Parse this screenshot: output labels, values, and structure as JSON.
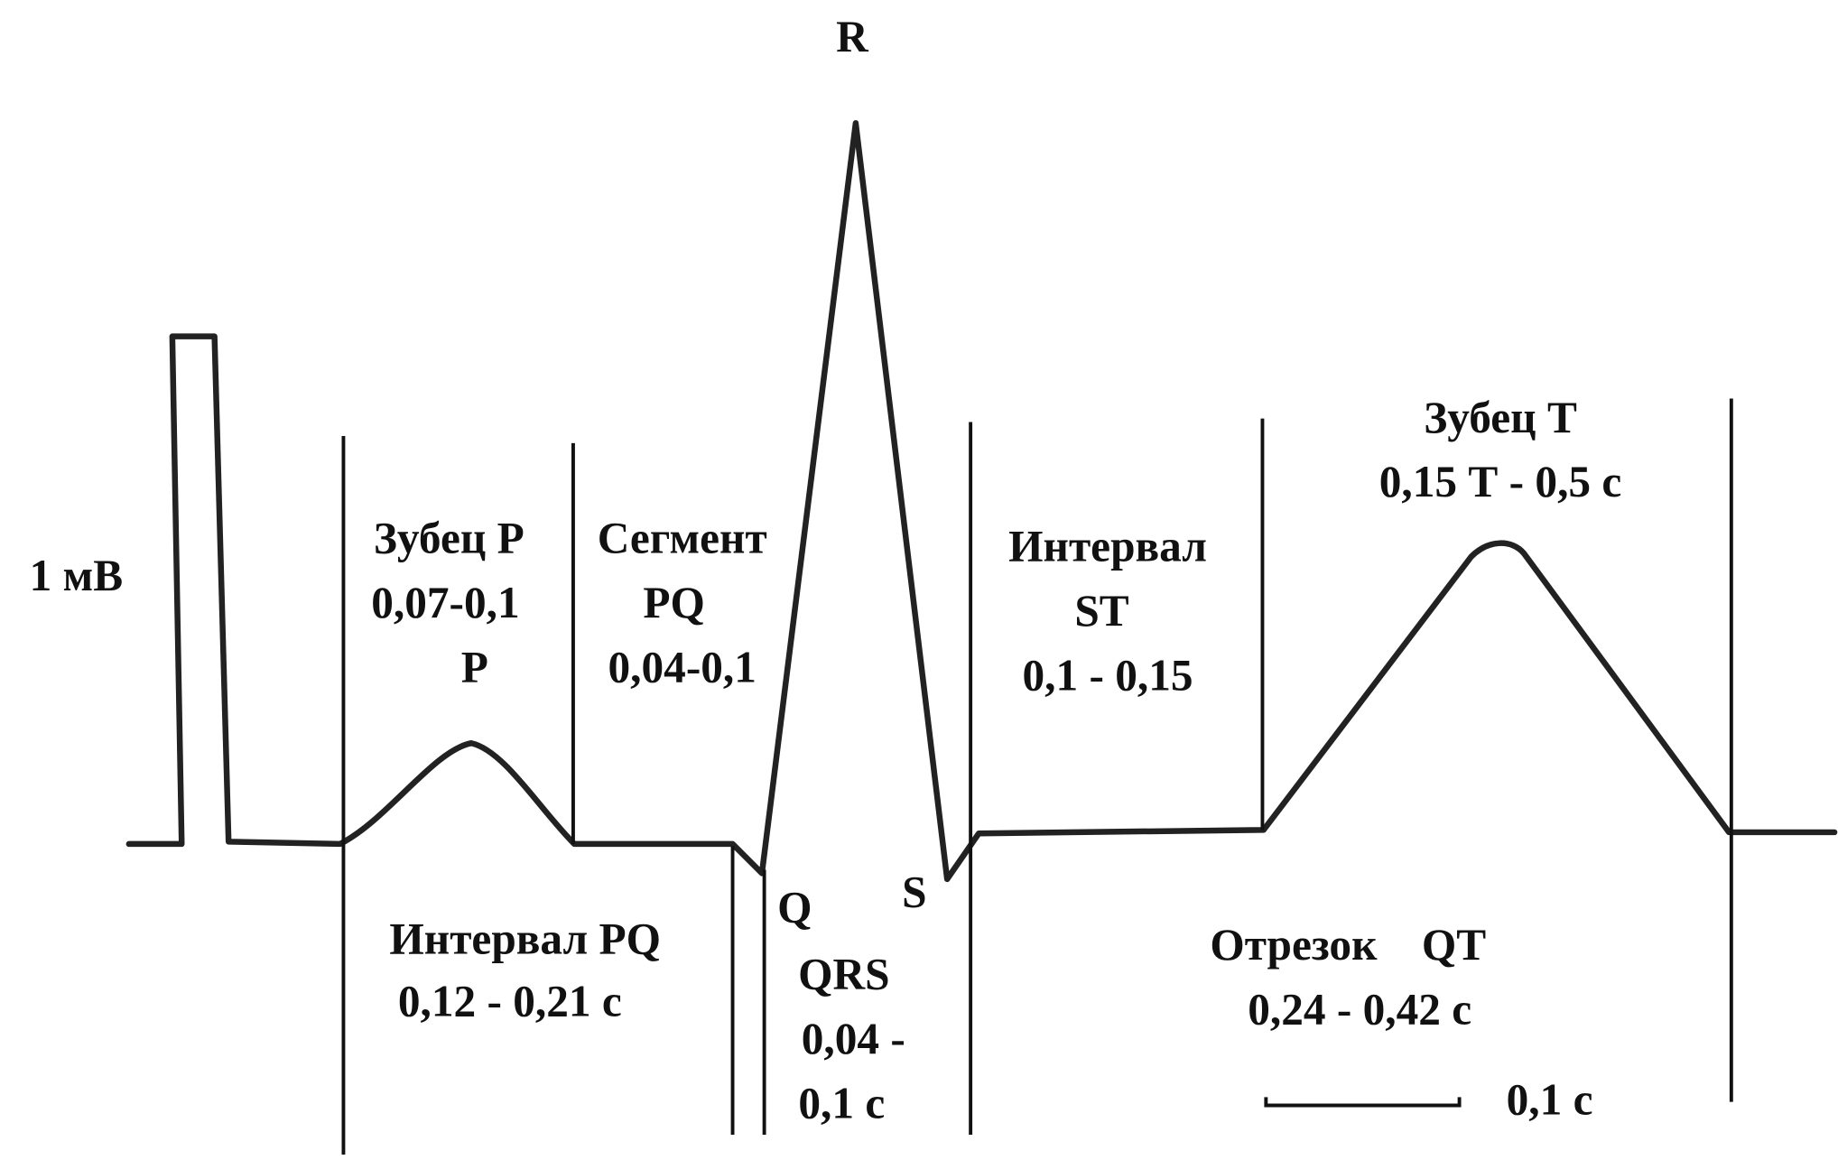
{
  "labels": {
    "r": "R",
    "calibration": "1 мВ",
    "p_wave": [
      "Зубец P",
      "0,07-0,1",
      "P"
    ],
    "pq_segment": [
      "Сегмент",
      "PQ",
      "0,04-0,1"
    ],
    "st_interval": [
      "Интервал",
      "ST",
      "0,1 - 0,15"
    ],
    "t_wave": [
      "Зубец Т",
      "0,15 Т - 0,5 с"
    ],
    "q": "Q",
    "s": "S",
    "pq_interval": [
      "Интервал PQ",
      "0,12 - 0,21 с"
    ],
    "qrs": [
      "QRS",
      "0,04 -",
      "0,1 с"
    ],
    "qt": [
      "Отрезок    QT",
      "0,24 - 0,42 с"
    ],
    "scale": "0,1 с"
  }
}
